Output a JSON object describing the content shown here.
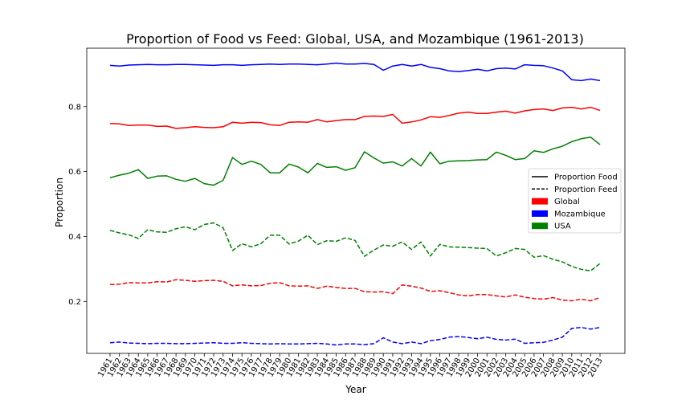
{
  "chart_data": {
    "type": "line",
    "title": "Proportion of Food vs Feed: Global, USA, and Mozambique (1961-2013)",
    "xlabel": "Year",
    "ylabel": "Proportion",
    "x": [
      1961,
      1962,
      1963,
      1964,
      1965,
      1966,
      1967,
      1968,
      1969,
      1970,
      1971,
      1972,
      1973,
      1974,
      1975,
      1976,
      1977,
      1978,
      1979,
      1980,
      1981,
      1982,
      1983,
      1984,
      1985,
      1986,
      1987,
      1988,
      1989,
      1990,
      1991,
      1992,
      1993,
      1994,
      1995,
      1996,
      1997,
      1998,
      1999,
      2000,
      2001,
      2002,
      2003,
      2004,
      2005,
      2006,
      2007,
      2008,
      2009,
      2010,
      2011,
      2012,
      2013
    ],
    "yticks": [
      0.2,
      0.4,
      0.6,
      0.8
    ],
    "ylim": [
      0.04,
      0.98
    ],
    "grid": false,
    "legend_position": "center-right",
    "legend": [
      {
        "label": "Proportion Food",
        "style": "solid-line"
      },
      {
        "label": "Proportion Feed",
        "style": "dashed-line"
      },
      {
        "label": "Global",
        "style": "patch",
        "color": "#ff0000"
      },
      {
        "label": "Mozambique",
        "style": "patch",
        "color": "#0000ff"
      },
      {
        "label": "USA",
        "style": "patch",
        "color": "#008000"
      }
    ],
    "series": [
      {
        "name": "Global",
        "metric": "Proportion Food",
        "color": "#ff0000",
        "dash": false,
        "values": [
          0.748,
          0.747,
          0.742,
          0.743,
          0.743,
          0.739,
          0.74,
          0.733,
          0.735,
          0.738,
          0.736,
          0.735,
          0.738,
          0.752,
          0.749,
          0.752,
          0.751,
          0.744,
          0.742,
          0.752,
          0.753,
          0.752,
          0.76,
          0.753,
          0.757,
          0.76,
          0.76,
          0.77,
          0.771,
          0.77,
          0.776,
          0.749,
          0.753,
          0.759,
          0.769,
          0.767,
          0.773,
          0.78,
          0.783,
          0.779,
          0.779,
          0.783,
          0.786,
          0.78,
          0.787,
          0.791,
          0.793,
          0.788,
          0.796,
          0.798,
          0.793,
          0.798,
          0.788
        ]
      },
      {
        "name": "Global",
        "metric": "Proportion Feed",
        "color": "#ff0000",
        "dash": true,
        "values": [
          0.252,
          0.253,
          0.258,
          0.257,
          0.257,
          0.261,
          0.26,
          0.267,
          0.265,
          0.262,
          0.264,
          0.265,
          0.262,
          0.248,
          0.251,
          0.248,
          0.249,
          0.256,
          0.258,
          0.248,
          0.247,
          0.248,
          0.24,
          0.247,
          0.243,
          0.24,
          0.24,
          0.23,
          0.229,
          0.23,
          0.224,
          0.251,
          0.247,
          0.241,
          0.231,
          0.233,
          0.227,
          0.22,
          0.217,
          0.221,
          0.221,
          0.217,
          0.214,
          0.22,
          0.213,
          0.209,
          0.207,
          0.212,
          0.204,
          0.202,
          0.207,
          0.202,
          0.212
        ]
      },
      {
        "name": "Mozambique",
        "metric": "Proportion Food",
        "color": "#0000ff",
        "dash": false,
        "values": [
          0.927,
          0.925,
          0.928,
          0.929,
          0.93,
          0.929,
          0.929,
          0.93,
          0.93,
          0.929,
          0.928,
          0.927,
          0.929,
          0.929,
          0.927,
          0.929,
          0.93,
          0.931,
          0.93,
          0.931,
          0.931,
          0.93,
          0.929,
          0.931,
          0.934,
          0.931,
          0.931,
          0.933,
          0.93,
          0.912,
          0.925,
          0.93,
          0.925,
          0.93,
          0.921,
          0.917,
          0.91,
          0.908,
          0.911,
          0.915,
          0.91,
          0.917,
          0.919,
          0.916,
          0.929,
          0.927,
          0.926,
          0.919,
          0.91,
          0.883,
          0.88,
          0.885,
          0.88
        ]
      },
      {
        "name": "Mozambique",
        "metric": "Proportion Feed",
        "color": "#0000ff",
        "dash": true,
        "values": [
          0.073,
          0.075,
          0.072,
          0.071,
          0.07,
          0.071,
          0.071,
          0.07,
          0.07,
          0.071,
          0.072,
          0.073,
          0.071,
          0.071,
          0.073,
          0.071,
          0.07,
          0.069,
          0.07,
          0.069,
          0.069,
          0.07,
          0.071,
          0.069,
          0.066,
          0.069,
          0.069,
          0.067,
          0.07,
          0.088,
          0.075,
          0.07,
          0.075,
          0.07,
          0.079,
          0.083,
          0.09,
          0.092,
          0.089,
          0.085,
          0.09,
          0.083,
          0.081,
          0.084,
          0.071,
          0.073,
          0.074,
          0.081,
          0.09,
          0.117,
          0.12,
          0.115,
          0.12
        ]
      },
      {
        "name": "USA",
        "metric": "Proportion Food",
        "color": "#008000",
        "dash": false,
        "values": [
          0.581,
          0.589,
          0.595,
          0.606,
          0.579,
          0.586,
          0.587,
          0.576,
          0.57,
          0.579,
          0.563,
          0.558,
          0.573,
          0.643,
          0.622,
          0.632,
          0.622,
          0.596,
          0.596,
          0.623,
          0.614,
          0.596,
          0.625,
          0.613,
          0.615,
          0.604,
          0.612,
          0.661,
          0.642,
          0.626,
          0.63,
          0.617,
          0.64,
          0.617,
          0.66,
          0.624,
          0.632,
          0.633,
          0.634,
          0.636,
          0.637,
          0.66,
          0.65,
          0.637,
          0.64,
          0.664,
          0.659,
          0.67,
          0.678,
          0.692,
          0.701,
          0.706,
          0.683
        ]
      },
      {
        "name": "USA",
        "metric": "Proportion Feed",
        "color": "#008000",
        "dash": true,
        "values": [
          0.419,
          0.411,
          0.405,
          0.394,
          0.421,
          0.414,
          0.413,
          0.424,
          0.43,
          0.421,
          0.437,
          0.442,
          0.427,
          0.357,
          0.378,
          0.368,
          0.378,
          0.404,
          0.404,
          0.377,
          0.386,
          0.404,
          0.375,
          0.387,
          0.385,
          0.396,
          0.388,
          0.339,
          0.358,
          0.374,
          0.37,
          0.383,
          0.36,
          0.383,
          0.34,
          0.376,
          0.368,
          0.367,
          0.366,
          0.364,
          0.363,
          0.34,
          0.35,
          0.363,
          0.36,
          0.336,
          0.341,
          0.33,
          0.322,
          0.308,
          0.299,
          0.294,
          0.317
        ]
      }
    ]
  }
}
